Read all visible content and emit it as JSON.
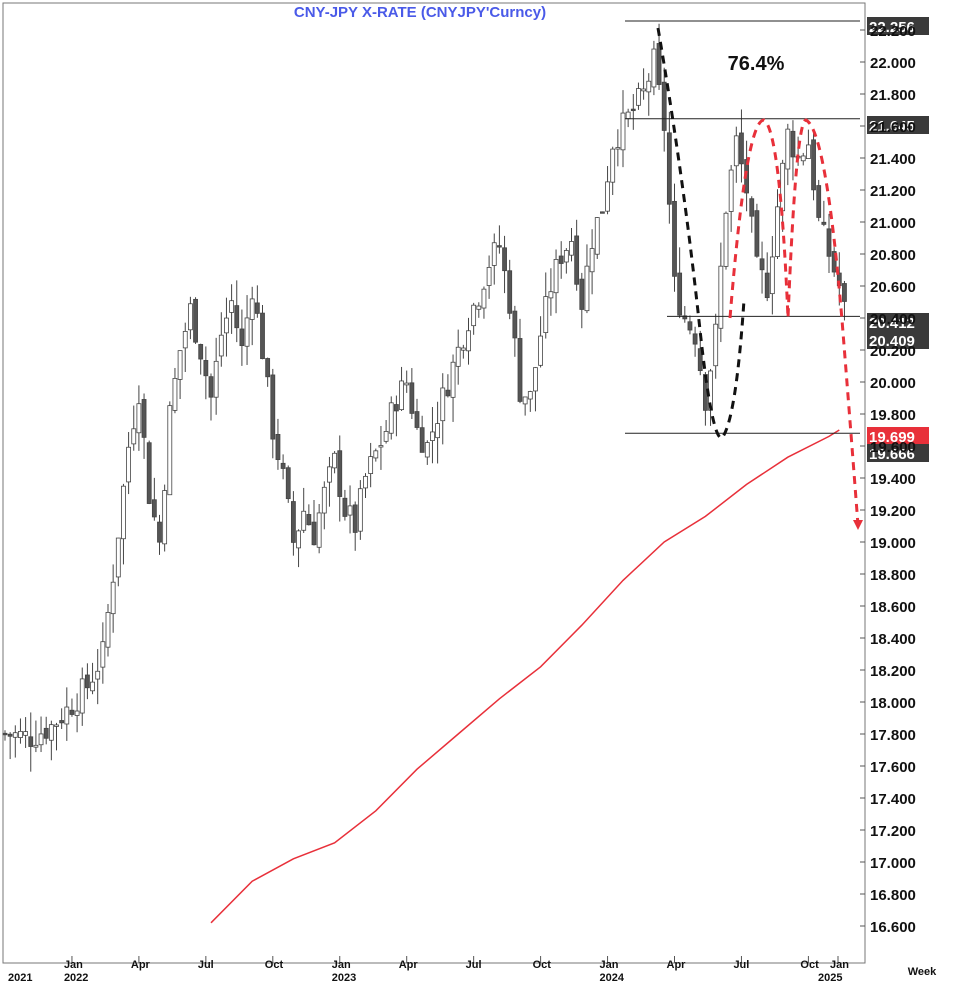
{
  "chart_data": {
    "type": "candlestick",
    "title": "CNY-JPY  X-RATE  (CNYJPY'Curncy)",
    "period_label": "Week",
    "annotation": "76.4%",
    "ylim": [
      16.5,
      22.3
    ],
    "y_ticks": [
      "16.600",
      "16.800",
      "17.000",
      "17.200",
      "17.400",
      "17.600",
      "17.800",
      "18.000",
      "18.200",
      "18.400",
      "18.600",
      "18.800",
      "19.000",
      "19.200",
      "19.400",
      "19.600",
      "19.800",
      "20.000",
      "20.200",
      "20.400",
      "20.600",
      "20.800",
      "21.000",
      "21.200",
      "21.400",
      "21.600",
      "21.800",
      "22.000",
      "22.200"
    ],
    "x_month_ticks": [
      "Jan",
      "Apr",
      "Jul",
      "Oct",
      "Jan",
      "Apr",
      "Jul",
      "Oct",
      "Jan",
      "Apr",
      "Jul",
      "Oct",
      "Jan"
    ],
    "x_year_ticks": [
      "2021",
      "2022",
      "2023",
      "2024",
      "2025"
    ],
    "levels": [
      {
        "value": "22.256",
        "color": "#3a3a3a"
      },
      {
        "value": "21.645",
        "color": "#3a3a3a"
      },
      {
        "value": "20.412",
        "color": "#3a3a3a"
      },
      {
        "value": "20.409",
        "color": "#3a3a3a"
      },
      {
        "value": "19.699",
        "color": "#e8303a"
      },
      {
        "value": "19.666",
        "color": "#3a3a3a"
      }
    ],
    "price_close_path": [
      [
        0,
        17.8
      ],
      [
        5,
        17.78
      ],
      [
        9,
        17.85
      ],
      [
        12,
        17.95
      ],
      [
        16,
        18.1
      ],
      [
        19,
        18.3
      ],
      [
        21,
        18.8
      ],
      [
        24,
        19.6
      ],
      [
        26,
        19.95
      ],
      [
        28,
        19.3
      ],
      [
        30,
        19.0
      ],
      [
        32,
        19.8
      ],
      [
        34,
        20.2
      ],
      [
        36,
        20.45
      ],
      [
        38,
        20.2
      ],
      [
        40,
        19.9
      ],
      [
        42,
        20.3
      ],
      [
        44,
        20.5
      ],
      [
        46,
        20.2
      ],
      [
        48,
        20.6
      ],
      [
        50,
        20.2
      ],
      [
        52,
        19.7
      ],
      [
        54,
        19.4
      ],
      [
        56,
        19.0
      ],
      [
        58,
        19.2
      ],
      [
        60,
        19.05
      ],
      [
        62,
        19.3
      ],
      [
        64,
        19.5
      ],
      [
        66,
        19.2
      ],
      [
        68,
        19.1
      ],
      [
        70,
        19.4
      ],
      [
        72,
        19.55
      ],
      [
        74,
        19.7
      ],
      [
        76,
        19.9
      ],
      [
        78,
        20.0
      ],
      [
        80,
        19.7
      ],
      [
        82,
        19.6
      ],
      [
        84,
        19.8
      ],
      [
        86,
        20.0
      ],
      [
        88,
        20.2
      ],
      [
        90,
        20.4
      ],
      [
        92,
        20.55
      ],
      [
        94,
        20.75
      ],
      [
        96,
        20.85
      ],
      [
        98,
        20.5
      ],
      [
        100,
        19.95
      ],
      [
        102,
        19.9
      ],
      [
        104,
        20.3
      ],
      [
        106,
        20.6
      ],
      [
        108,
        20.8
      ],
      [
        110,
        20.9
      ],
      [
        112,
        20.5
      ],
      [
        114,
        20.9
      ],
      [
        116,
        21.1
      ],
      [
        118,
        21.5
      ],
      [
        120,
        21.6
      ],
      [
        122,
        21.7
      ],
      [
        124,
        21.8
      ],
      [
        126,
        22.0
      ],
      [
        128,
        21.6
      ],
      [
        130,
        20.6
      ],
      [
        132,
        20.4
      ],
      [
        134,
        20.3
      ],
      [
        136,
        19.9
      ],
      [
        138,
        20.3
      ],
      [
        140,
        21.1
      ],
      [
        142,
        21.5
      ],
      [
        144,
        21.2
      ],
      [
        146,
        20.7
      ],
      [
        148,
        20.6
      ],
      [
        150,
        21.1
      ],
      [
        152,
        21.55
      ],
      [
        154,
        21.4
      ],
      [
        156,
        21.5
      ],
      [
        158,
        21.0
      ],
      [
        160,
        20.8
      ],
      [
        162,
        20.6
      ],
      [
        163,
        20.45
      ]
    ],
    "price_noise_amplitude": 0.18,
    "moving_average": {
      "color": "#e8303a",
      "points": [
        [
          40,
          16.62
        ],
        [
          48,
          16.88
        ],
        [
          56,
          17.02
        ],
        [
          64,
          17.12
        ],
        [
          72,
          17.32
        ],
        [
          80,
          17.58
        ],
        [
          88,
          17.8
        ],
        [
          96,
          18.02
        ],
        [
          104,
          18.22
        ],
        [
          112,
          18.48
        ],
        [
          120,
          18.76
        ],
        [
          128,
          19.0
        ],
        [
          136,
          19.16
        ],
        [
          144,
          19.36
        ],
        [
          152,
          19.53
        ],
        [
          160,
          19.66
        ],
        [
          162,
          19.7
        ]
      ]
    },
    "x_axis_weeks": {
      "start": 0,
      "end": 163
    }
  },
  "overlays": {
    "black_curve_color": "#111111",
    "red_curve_color": "#e8303a"
  }
}
